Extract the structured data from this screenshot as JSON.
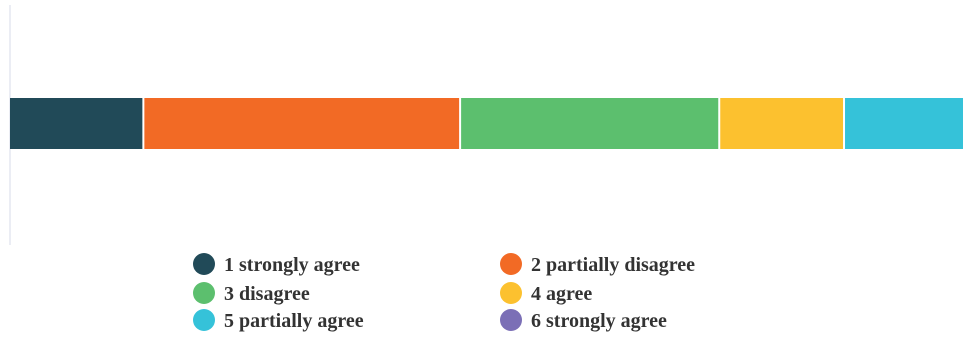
{
  "chart_data": {
    "type": "bar",
    "orientation": "horizontal",
    "stacked": true,
    "title": "",
    "xlabel": "",
    "ylabel": "",
    "series": [
      {
        "name": "1 strongly agree",
        "values": [
          14
        ],
        "color": "#214a58"
      },
      {
        "name": "2 partially disagree",
        "values": [
          33
        ],
        "color": "#f26a25"
      },
      {
        "name": "3 disagree",
        "values": [
          27
        ],
        "color": "#5cbf6e"
      },
      {
        "name": "4 agree",
        "values": [
          13
        ],
        "color": "#fcc12f"
      },
      {
        "name": "5 partially agree",
        "values": [
          12.5
        ],
        "color": "#35c2d9"
      },
      {
        "name": "6 strongly agree",
        "values": [
          0
        ],
        "color": "#7b6fb6"
      }
    ],
    "legend_position": "bottom",
    "grid": false
  }
}
